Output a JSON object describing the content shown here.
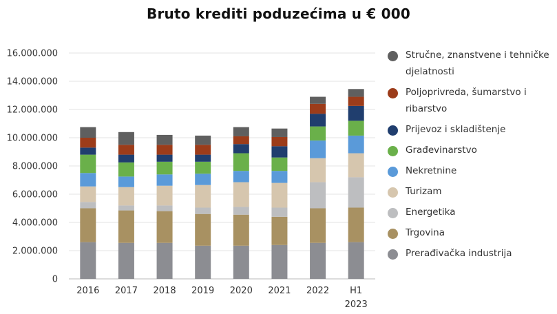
{
  "chart_data": {
    "type": "bar",
    "stacked": true,
    "title": "Bruto krediti poduzećima u € 000",
    "categories": [
      "2016",
      "2017",
      "2018",
      "2019",
      "2020",
      "2021",
      "2022",
      "H1\n2023"
    ],
    "ylim": [
      0,
      16000000
    ],
    "yticks": [
      "0",
      "2.000.000",
      "4.000.000",
      "6.000.000",
      "8.000.000",
      "10.000.000",
      "12.000.000",
      "14.000.000",
      "16.000.000"
    ],
    "grid": true,
    "legend_position": "right",
    "series": [
      {
        "name": "Prerađivačka industrija",
        "color": "#8c8d92",
        "values": [
          2600000,
          2550000,
          2550000,
          2350000,
          2350000,
          2400000,
          2550000,
          2600000
        ]
      },
      {
        "name": "Trgovina",
        "color": "#a89162",
        "values": [
          2400000,
          2300000,
          2250000,
          2250000,
          2200000,
          2000000,
          2450000,
          2450000
        ]
      },
      {
        "name": "Energetika",
        "color": "#bdbec0",
        "values": [
          450000,
          350000,
          400000,
          450000,
          550000,
          650000,
          1850000,
          2150000
        ]
      },
      {
        "name": "Turizam",
        "color": "#d6c6ae",
        "values": [
          1100000,
          1300000,
          1400000,
          1600000,
          1750000,
          1750000,
          1700000,
          1700000
        ]
      },
      {
        "name": "Nekretnine",
        "color": "#5a9ad9",
        "values": [
          950000,
          750000,
          800000,
          800000,
          800000,
          850000,
          1250000,
          1250000
        ]
      },
      {
        "name": "Građevinarstvo",
        "color": "#6ab04a",
        "values": [
          1300000,
          1000000,
          900000,
          850000,
          1250000,
          950000,
          1000000,
          1050000
        ]
      },
      {
        "name": "Prijevoz i skladištenje",
        "color": "#203e6e",
        "values": [
          500000,
          550000,
          500000,
          500000,
          650000,
          800000,
          900000,
          1050000
        ]
      },
      {
        "name": "Poljoprivreda, šumarstvo i ribarstvo",
        "color": "#9c3c1a",
        "values": [
          700000,
          700000,
          700000,
          700000,
          550000,
          650000,
          700000,
          650000
        ]
      },
      {
        "name": "Stručne, znanstvene i tehničke djelatnosti",
        "color": "#5f5f5f",
        "values": [
          750000,
          900000,
          700000,
          650000,
          650000,
          600000,
          500000,
          550000
        ]
      }
    ]
  }
}
